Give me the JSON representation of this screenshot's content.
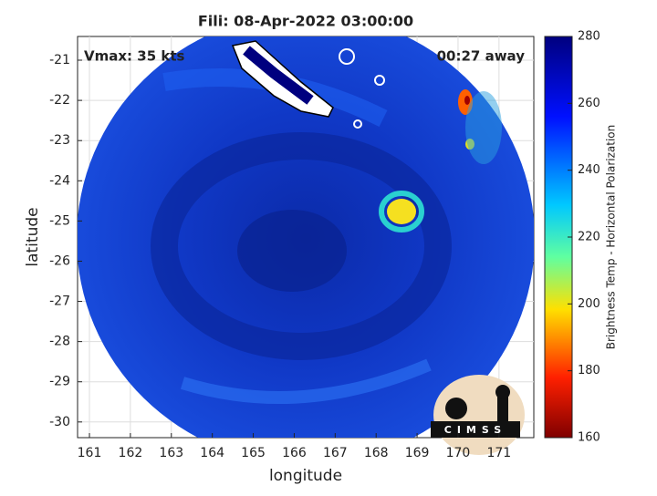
{
  "title": "Fili: 08-Apr-2022 03:00:00",
  "annotations": {
    "vmax": "Vmax: 35 kts",
    "away": "00:27 away"
  },
  "x_axis": {
    "label": "longitude",
    "lim": [
      160.71,
      171.85
    ],
    "ticks": [
      161,
      162,
      163,
      164,
      165,
      166,
      167,
      168,
      169,
      170,
      171
    ]
  },
  "y_axis": {
    "label": "latitude",
    "lim": [
      -30.39,
      -20.41
    ],
    "ticks": [
      -21,
      -22,
      -23,
      -24,
      -25,
      -26,
      -27,
      -28,
      -29,
      -30
    ]
  },
  "colorbar": {
    "label": "Brightness Temp - Horizontal Polarization",
    "lim": [
      160,
      280
    ],
    "ticks": [
      160,
      180,
      200,
      220,
      240,
      260,
      280
    ]
  },
  "logo": "CIMSS"
}
